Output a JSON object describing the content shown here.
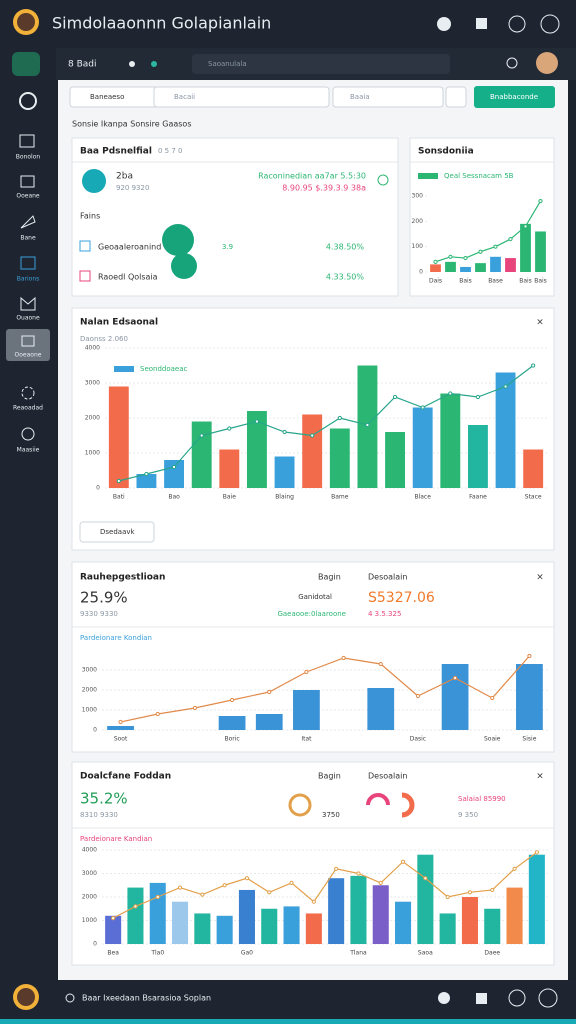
{
  "header": {
    "title": "Simdolaaonnn Golapianlain"
  },
  "subbar": {
    "label": "8 Badi",
    "search": "Saoanulala"
  },
  "sidebar": {
    "items": [
      "Bonolon",
      "Ooeane",
      "Bane",
      "Barions",
      "Ouaone",
      "Ooeaone",
      "Reaoadad",
      "Maasiie"
    ]
  },
  "toolbar": {
    "select": "Baneaeso",
    "search1": "Bacaii",
    "search2": "Baaia",
    "button": "Bnabbaconde"
  },
  "section_label": "Sonsie Ikanpa Sonsire Gaasos",
  "summary_card": {
    "title": "Baa Pdsnelfial",
    "subtitle": "0 5 7 0",
    "metric": "2ba",
    "metric_sub": "920 9320",
    "green_top": "Raconinedian aa7ar 5.5:30",
    "green_bottom": "8.90.95 $.39.3.9 38a",
    "list_title": "Fains",
    "rows": [
      {
        "name": "Geoaaleroanind",
        "mid": "3.9",
        "value": "4.38.50%"
      },
      {
        "name": "Raoedl Qolsaia",
        "mid": "",
        "value": "4.33.50%"
      }
    ]
  },
  "panel_c": {
    "big": "25.9%",
    "big_sub": "9330 9330",
    "col1": "Bagin",
    "col2": "Desoalain",
    "mid1": "Ganidotal",
    "mid2": "Gaeaooe:0laaroone",
    "value": "S5327.06",
    "value_sub": "4 3.5.325"
  },
  "panel_d": {
    "big": "35.2%",
    "big_sub": "8310 9330",
    "col1": "Bagin",
    "col2": "Desoalain",
    "gauge": "3750",
    "side1": "Salaial 85990",
    "side2": "9 350"
  },
  "big_footer": "Dsedaavk",
  "footer": {
    "text": "Baar Ixeedaan Bsarasioa Soplan"
  },
  "chart_data": [
    {
      "type": "bar",
      "title": "Sonsdoniia",
      "legend": "Qeal Sessnacam 5B",
      "categories": [
        "Dais",
        null,
        "Bais",
        null,
        "Base",
        null,
        "Bais",
        "Bais"
      ],
      "values": [
        30,
        40,
        20,
        35,
        60,
        55,
        190,
        160
      ],
      "colors": [
        "#f26b4b",
        "#2bb673",
        "#3aa0dc",
        "#2bb673",
        "#3aa0dc",
        "#e8457c",
        "#2bb673",
        "#2bb673"
      ],
      "line": {
        "name": "Qeal Sessnacam 5B",
        "color": "#2bb673",
        "values": [
          40,
          60,
          55,
          80,
          100,
          130,
          180,
          280
        ]
      },
      "ylim": [
        0,
        300
      ],
      "yticks": [
        0,
        100,
        200,
        300
      ]
    },
    {
      "type": "bar",
      "title": "Nalan Edsaonal",
      "subtitle": "Daonss 2.060",
      "categories": [
        "Bati",
        null,
        "Bao",
        null,
        "Baie",
        null,
        "Blaing",
        null,
        "Bame",
        null,
        null,
        "Blace",
        null,
        "Faane",
        null,
        "Stace"
      ],
      "values": [
        2900,
        400,
        800,
        1900,
        1100,
        2200,
        900,
        2100,
        1700,
        3500,
        1600,
        2300,
        2700,
        1800,
        3300,
        1100
      ],
      "colors": [
        "#f26b4b",
        "#3aa0dc",
        "#3aa0dc",
        "#2bb673",
        "#f26b4b",
        "#2bb673",
        "#3aa0dc",
        "#f26b4b",
        "#2bb673",
        "#2bb673",
        "#2bb673",
        "#3aa0dc",
        "#2bb673",
        "#22b5a0",
        "#3aa0dc",
        "#f26b4b"
      ],
      "line": {
        "name": "Seonddoaeac",
        "color": "#27a58a",
        "values": [
          200,
          400,
          600,
          1500,
          1700,
          1900,
          1600,
          1500,
          2000,
          1800,
          2600,
          2300,
          2700,
          2600,
          2900,
          3500
        ]
      },
      "ylim": [
        0,
        4000
      ],
      "yticks": [
        0,
        1000,
        2000,
        3000,
        4000
      ],
      "grid": true
    },
    {
      "type": "bar",
      "title": "Rauhepgestlioan",
      "legend_title": "Pardeionare Kondian",
      "categories": [
        "Soot",
        null,
        null,
        "Boric",
        null,
        "Itat",
        null,
        null,
        "Dasic",
        null,
        "Soaie",
        "Sisie"
      ],
      "values": [
        200,
        null,
        null,
        700,
        800,
        2000,
        null,
        2100,
        null,
        3300,
        null,
        3300
      ],
      "color": "#3a93d6",
      "line": {
        "name": "Pardeionare",
        "color": "#e28a4a",
        "values": [
          400,
          800,
          1100,
          1500,
          1900,
          2900,
          3600,
          3300,
          1700,
          2600,
          1600,
          3700
        ]
      },
      "ylim": [
        0,
        4000
      ],
      "yticks": [
        0,
        1000,
        2000,
        3000
      ],
      "grid": true
    },
    {
      "type": "bar",
      "title": "Doalcfane Foddan",
      "legend_title": "Pardeionare Kandian",
      "categories": [
        "Bea",
        null,
        "Tla0",
        null,
        null,
        null,
        "Ga0",
        null,
        null,
        null,
        null,
        "Tlana",
        null,
        null,
        "Saoa",
        null,
        null,
        "Daee",
        null,
        null
      ],
      "values": [
        1200,
        2400,
        2600,
        1800,
        1300,
        1200,
        2300,
        1500,
        1600,
        1300,
        2800,
        2900,
        2500,
        1800,
        3800,
        1300,
        2000,
        1500,
        2400,
        3800
      ],
      "colors": [
        "#5b6ed6",
        "#22b5a0",
        "#3aa0dc",
        "#9cc8ec",
        "#22b5a0",
        "#3aa0dc",
        "#3a80d0",
        "#22b5a0",
        "#3aa0dc",
        "#f26b4b",
        "#3a80d0",
        "#22b5a0",
        "#7b5fc9",
        "#3aa0dc",
        "#22b5a0",
        "#22b5a0",
        "#f26b4b",
        "#22b5a0",
        "#f28a4b",
        "#22b5c8"
      ],
      "line": {
        "name": "Kandian",
        "color": "#e2a04a",
        "values": [
          1100,
          1600,
          2000,
          2400,
          2100,
          2500,
          2800,
          2200,
          2600,
          1800,
          3200,
          3000,
          2600,
          3500,
          2800,
          2000,
          2200,
          2300,
          3200,
          3900
        ]
      },
      "ylim": [
        0,
        4000
      ],
      "yticks": [
        0,
        1000,
        2000,
        3000,
        4000
      ],
      "grid": true
    }
  ]
}
